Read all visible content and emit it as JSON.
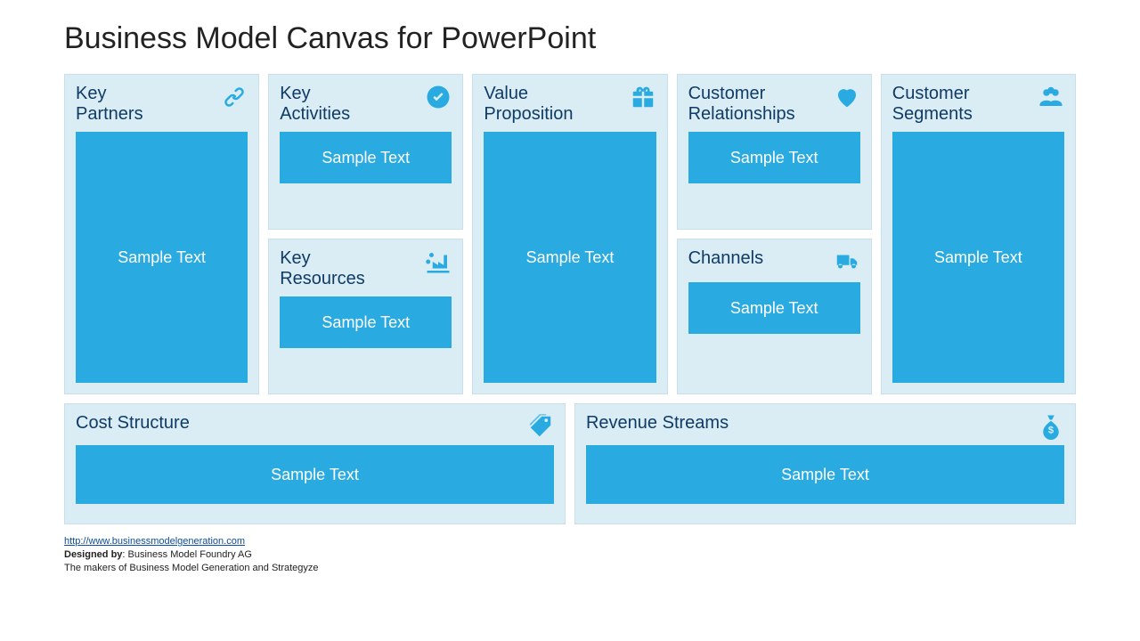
{
  "title": "Business Model Canvas for PowerPoint",
  "colors": {
    "block_bg": "#daedf4",
    "block_border": "#c7e0ea",
    "accent": "#29abe2",
    "label": "#0f3b66",
    "text_on_accent": "#ffffff"
  },
  "blocks": {
    "key_partners": {
      "label": "Key\nPartners",
      "content": "Sample Text",
      "icon": "link-icon"
    },
    "key_activities": {
      "label": "Key\nActivities",
      "content": "Sample Text",
      "icon": "check-circle-icon"
    },
    "key_resources": {
      "label": "Key\nResources",
      "content": "Sample Text",
      "icon": "factory-icon"
    },
    "value_proposition": {
      "label": "Value\nProposition",
      "content": "Sample Text",
      "icon": "gift-icon"
    },
    "customer_relationships": {
      "label": "Customer\nRelationships",
      "content": "Sample Text",
      "icon": "heart-icon"
    },
    "channels": {
      "label": "Channels",
      "content": "Sample Text",
      "icon": "truck-icon"
    },
    "customer_segments": {
      "label": "Customer\nSegments",
      "content": "Sample Text",
      "icon": "users-icon"
    },
    "cost_structure": {
      "label": "Cost Structure",
      "content": "Sample Text",
      "icon": "tag-icon"
    },
    "revenue_streams": {
      "label": "Revenue Streams",
      "content": "Sample Text",
      "icon": "money-bag-icon"
    }
  },
  "footer": {
    "url_text": "http://www.businessmodelgeneration.com",
    "designed_by_label": "Designed by",
    "designed_by_value": ": Business Model Foundry AG",
    "tagline": "The makers of Business Model Generation and Strategyze"
  }
}
